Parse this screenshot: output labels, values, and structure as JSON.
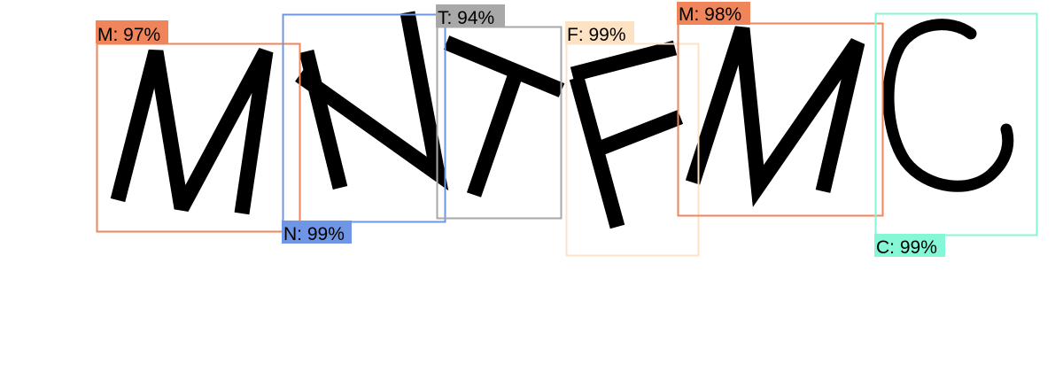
{
  "detections": [
    {
      "label": "M: 97%",
      "color": "#f0845a"
    },
    {
      "label": "N: 99%",
      "color": "#6f95e6"
    },
    {
      "label": "T: 94%",
      "color": "#a8a8a8"
    },
    {
      "label": "F: 99%",
      "color": "#fde2c4"
    },
    {
      "label": "M: 98%",
      "color": "#f0845a"
    },
    {
      "label": "C: 99%",
      "color": "#86f7d6"
    }
  ]
}
